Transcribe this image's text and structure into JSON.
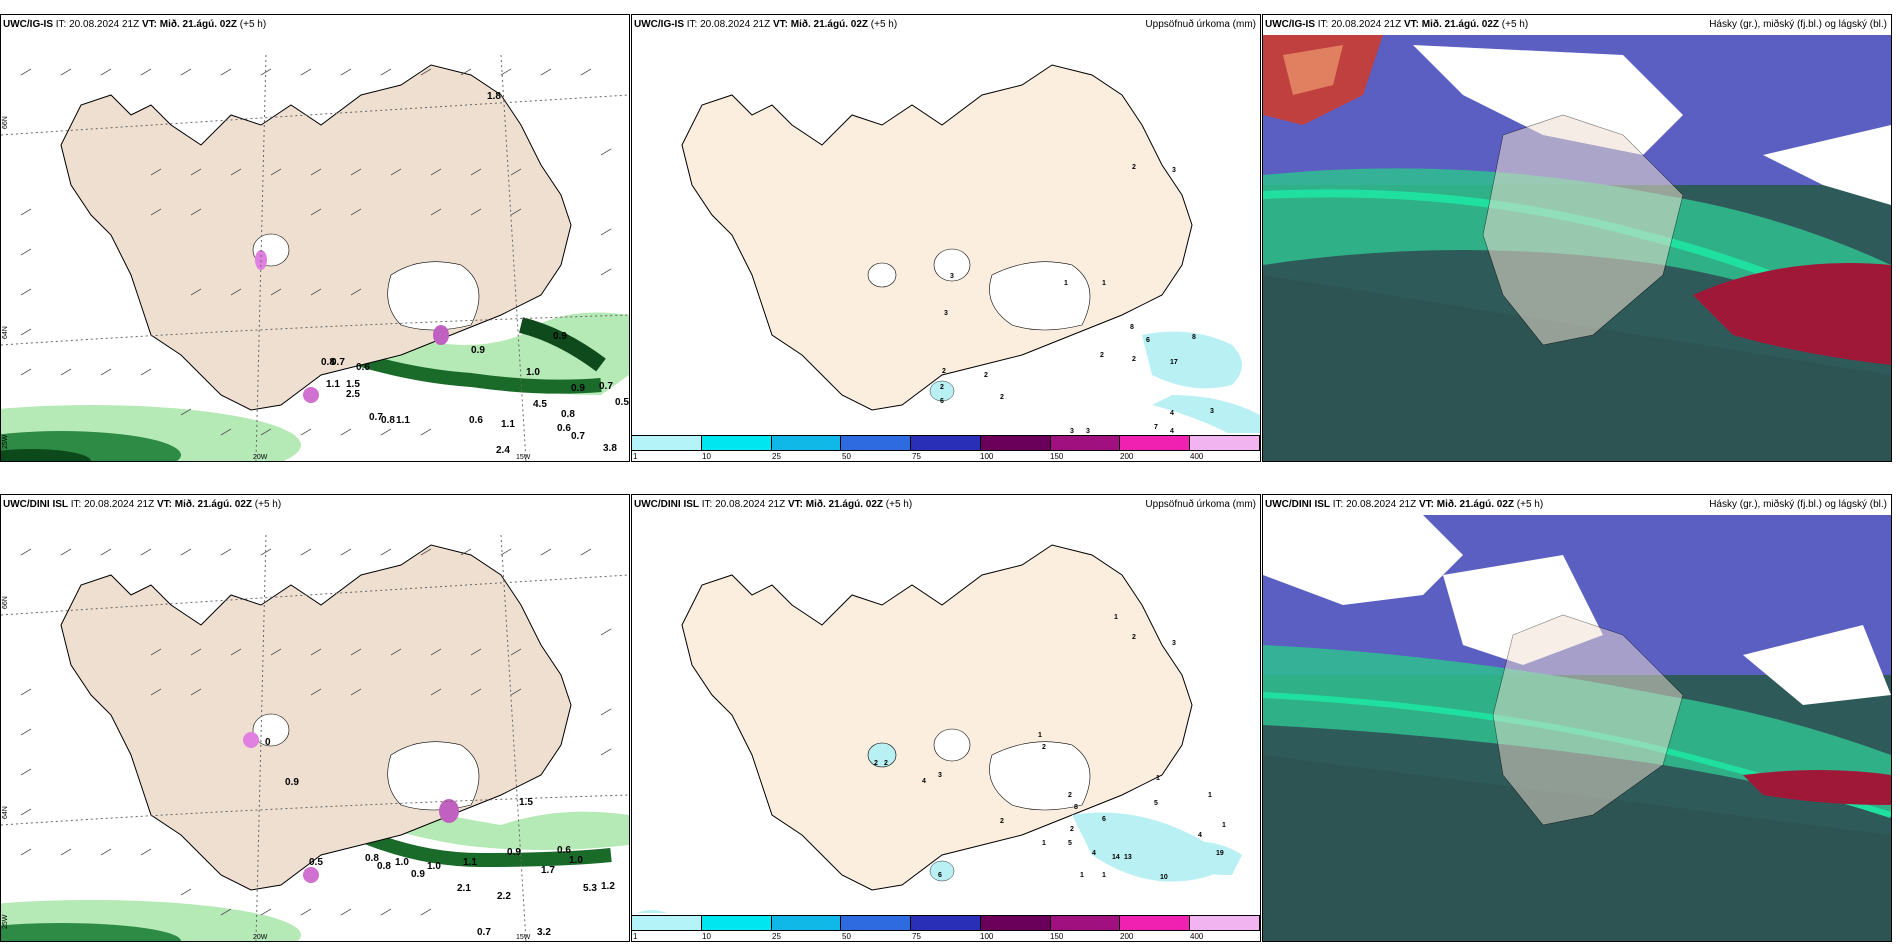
{
  "rows": [
    {
      "model": "UWC/IG-IS",
      "it_label": "IT:",
      "it_value": "20.08.2024 21Z",
      "vt_label": "VT:",
      "vt_value": "Mið. 21.ágú. 02Z",
      "offset": "(+5 h)",
      "wind_labels": [
        "0.8",
        "0.7",
        "0.6",
        "1.1",
        "1.5",
        "2.5",
        "0.7",
        "0.8",
        "1.1",
        "0.6",
        "1.1",
        "2.4",
        "0.9",
        "0.9",
        "1.0",
        "4.5",
        "0.9",
        "0.7",
        "0.5",
        "0.8",
        "0.6",
        "0.7",
        "3.8",
        "1.8"
      ],
      "precip_labels": [
        "2",
        "3",
        "3",
        "3",
        "1",
        "1",
        "8",
        "6",
        "8",
        "2",
        "2",
        "17",
        "2",
        "2",
        "2",
        "6",
        "2",
        "4",
        "3",
        "7",
        "4",
        "3",
        "3"
      ],
      "lat_labels": [
        "66N",
        "64N"
      ],
      "lon_labels": [
        "25W",
        "20W",
        "15W"
      ]
    },
    {
      "model": "UWC/DINI ISL",
      "it_label": "IT:",
      "it_value": "20.08.2024 21Z",
      "vt_label": "VT:",
      "vt_value": "Mið. 21.ágú. 02Z",
      "offset": "(+5 h)",
      "wind_labels": [
        "0",
        "0.9",
        "1.5",
        "0.5",
        "0.8",
        "0.8",
        "1.0",
        "0.9",
        "1.1",
        "1.0",
        "0.9",
        "1.7",
        "0.6",
        "1.0",
        "5.3",
        "1.2",
        "0.7",
        "3.2",
        "2.1",
        "2.2"
      ],
      "precip_labels": [
        "1",
        "2",
        "3",
        "1",
        "2",
        "2",
        "2",
        "4",
        "3",
        "1",
        "2",
        "1",
        "8",
        "6",
        "5",
        "2",
        "1",
        "5",
        "1",
        "4",
        "14",
        "13",
        "19",
        "2",
        "1",
        "10",
        "6",
        "4",
        "1"
      ],
      "lat_labels": [
        "66N",
        "64N"
      ],
      "lon_labels": [
        "25W",
        "20W",
        "15W"
      ]
    }
  ],
  "precip_title": "Uppsöfnuð úrkoma (mm)",
  "cloud_title": "Hásky (gr.), miðský (fj.bl.) og lágský (bl.)",
  "legend": {
    "ticks": [
      "1",
      "10",
      "25",
      "50",
      "75",
      "100",
      "150",
      "200",
      "400"
    ],
    "colors": [
      "#b4f4f8",
      "#00e6f0",
      "#10b8e8",
      "#2e6be0",
      "#2a2fb8",
      "#6a005a",
      "#a0107e",
      "#f020b0",
      "#f2b4f0"
    ]
  },
  "colors": {
    "land": "#eedfd0",
    "land_precip": "#fbeedf",
    "sea": "#ffffff",
    "precip_light": "#b9f0f4",
    "wind_green_light": "#b5e9b5",
    "wind_green_dark": "#1a6a2a",
    "cloud_high": "#5b5fc2",
    "cloud_mid": "#2fbf8f",
    "cloud_low": "#2f4f4f",
    "cloud_red": "#a01838"
  }
}
